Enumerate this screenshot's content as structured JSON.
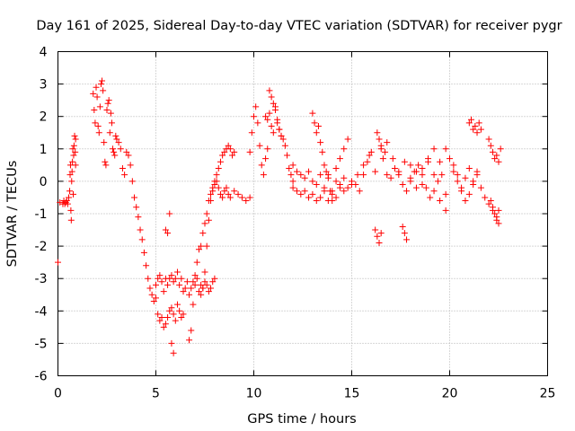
{
  "chart_data": {
    "type": "scatter",
    "title": "Day 161 of 2025, Sidereal Day-to-day VTEC variation (SDTVAR) for receiver pygr",
    "xlabel": "GPS time / hours",
    "ylabel": "SDTVAR / TECUs",
    "xlim": [
      0,
      25
    ],
    "ylim": [
      -6,
      4
    ],
    "xticks": [
      0,
      5,
      10,
      15,
      20,
      25
    ],
    "yticks": [
      -6,
      -5,
      -4,
      -3,
      -2,
      -1,
      0,
      1,
      2,
      3,
      4
    ],
    "grid": true,
    "marker": "+",
    "colors": {
      "series": "#ff0000",
      "grid": "#b0b0b0",
      "axis": "#000000"
    },
    "series": [
      {
        "name": "SDTVAR",
        "x": [
          0.0,
          0.1,
          0.25,
          0.3,
          0.35,
          0.4,
          0.45,
          0.5,
          0.55,
          0.6,
          0.62,
          0.64,
          0.66,
          0.68,
          0.7,
          0.72,
          0.74,
          0.76,
          0.78,
          0.8,
          0.82,
          0.85,
          0.88,
          0.9,
          0.9,
          1.8,
          1.85,
          1.9,
          1.95,
          2.0,
          2.05,
          2.1,
          2.15,
          2.2,
          2.25,
          2.3,
          2.35,
          2.4,
          2.45,
          2.5,
          2.55,
          2.6,
          2.65,
          2.7,
          2.75,
          2.8,
          2.85,
          2.9,
          2.95,
          3.0,
          3.1,
          3.2,
          3.3,
          3.4,
          3.5,
          3.6,
          3.7,
          3.8,
          3.9,
          4.0,
          4.1,
          4.2,
          4.3,
          4.4,
          4.5,
          4.6,
          4.7,
          4.8,
          4.9,
          5.0,
          5.0,
          5.1,
          5.2,
          5.3,
          5.4,
          5.5,
          5.6,
          5.7,
          5.8,
          5.9,
          6.0,
          6.1,
          6.2,
          6.3,
          6.4,
          6.5,
          6.6,
          6.7,
          6.8,
          6.9,
          7.0,
          7.1,
          7.2,
          7.3,
          7.4,
          7.5,
          7.6,
          7.7,
          7.8,
          7.9,
          8.0,
          5.1,
          5.2,
          5.3,
          5.4,
          5.5,
          5.6,
          5.7,
          5.8,
          5.9,
          6.0,
          6.1,
          6.2,
          6.3,
          6.4,
          5.5,
          5.6,
          5.7,
          5.8,
          5.9,
          6.7,
          6.8,
          6.9,
          7.0,
          7.1,
          7.2,
          7.3,
          7.4,
          7.5,
          7.6,
          7.7,
          7.8,
          7.9,
          8.0,
          8.1,
          8.2,
          8.3,
          8.4,
          8.5,
          8.6,
          8.7,
          8.8,
          8.9,
          9.0,
          7.3,
          7.4,
          7.5,
          7.6,
          7.7,
          7.8,
          7.9,
          8.0,
          8.1,
          8.2,
          8.3,
          8.4,
          8.5,
          8.6,
          8.7,
          8.8,
          9.0,
          9.2,
          9.4,
          9.6,
          9.8,
          9.8,
          9.9,
          10.0,
          10.1,
          10.2,
          10.3,
          10.4,
          10.5,
          10.6,
          10.7,
          10.8,
          10.9,
          11.0,
          11.1,
          11.2,
          11.3,
          11.4,
          11.5,
          11.6,
          11.7,
          11.8,
          11.9,
          12.0,
          10.6,
          10.7,
          10.8,
          10.9,
          11.0,
          11.1,
          11.2,
          11.3,
          11.4,
          12.0,
          12.2,
          12.4,
          12.6,
          12.8,
          13.0,
          13.2,
          13.4,
          13.6,
          13.8,
          14.0,
          14.2,
          14.4,
          14.6,
          14.8,
          15.0,
          15.2,
          15.4,
          15.6,
          15.8,
          16.0,
          12.0,
          12.2,
          12.4,
          12.6,
          12.8,
          13.0,
          13.2,
          13.4,
          13.6,
          13.8,
          14.0,
          14.2,
          14.4,
          14.6,
          13.0,
          13.1,
          13.2,
          13.3,
          13.4,
          13.5,
          13.6,
          13.7,
          13.8,
          13.9,
          14.0,
          14.2,
          14.4,
          14.6,
          14.8,
          15.0,
          15.3,
          15.6,
          15.9,
          16.2,
          16.5,
          16.8,
          17.1,
          17.4,
          17.7,
          18.0,
          18.3,
          18.6,
          18.9,
          19.2,
          19.5,
          19.8,
          16.3,
          16.4,
          16.5,
          16.6,
          16.7,
          16.8,
          16.2,
          16.3,
          16.4,
          16.5,
          17.6,
          17.7,
          17.8,
          17.0,
          17.2,
          17.4,
          17.6,
          17.8,
          18.0,
          18.2,
          18.4,
          18.6,
          18.8,
          19.0,
          19.2,
          19.4,
          19.6,
          19.8,
          18.0,
          18.3,
          18.6,
          18.9,
          19.2,
          19.5,
          19.8,
          20.0,
          20.2,
          20.4,
          20.6,
          20.8,
          21.0,
          21.2,
          21.4,
          21.6,
          21.8,
          22.0,
          22.2,
          22.4,
          22.5,
          21.0,
          21.1,
          21.2,
          21.3,
          21.4,
          21.5,
          21.6,
          20.2,
          20.4,
          20.6,
          20.8,
          21.0,
          21.2,
          21.4,
          22.0,
          22.1,
          22.2,
          22.3,
          22.4,
          22.5,
          22.6,
          22.1,
          22.2,
          22.3,
          22.4,
          22.5
        ],
        "y": [
          -2.5,
          -0.65,
          -0.7,
          -0.6,
          -0.7,
          -0.65,
          -0.6,
          -0.7,
          -0.5,
          -0.3,
          0.2,
          0.5,
          -0.9,
          -1.2,
          0.0,
          0.3,
          0.6,
          1.0,
          -0.4,
          0.8,
          1.1,
          1.4,
          0.9,
          0.5,
          1.3,
          2.7,
          2.2,
          1.8,
          2.9,
          2.6,
          1.7,
          1.5,
          2.3,
          3.0,
          3.1,
          2.8,
          1.2,
          0.6,
          0.5,
          2.2,
          2.4,
          2.5,
          1.5,
          2.1,
          1.8,
          1.0,
          0.9,
          0.8,
          1.4,
          1.3,
          1.2,
          1.0,
          0.4,
          0.2,
          0.9,
          0.8,
          0.5,
          0.0,
          -0.5,
          -0.8,
          -1.1,
          -1.5,
          -1.8,
          -2.2,
          -2.6,
          -3.0,
          -3.3,
          -3.5,
          -3.7,
          -3.6,
          -3.2,
          -3.0,
          -2.9,
          -3.1,
          -3.4,
          -3.0,
          -3.2,
          -3.0,
          -2.9,
          -3.1,
          -3.0,
          -2.8,
          -3.2,
          -3.0,
          -3.4,
          -3.3,
          -3.1,
          -3.5,
          -3.3,
          -3.1,
          -3.2,
          -3.0,
          -3.4,
          -3.2,
          -3.3,
          -3.1,
          -3.2,
          -3.4,
          -3.3,
          -3.1,
          -3.0,
          -4.1,
          -4.3,
          -4.2,
          -4.5,
          -4.4,
          -4.2,
          -4.0,
          -3.9,
          -4.1,
          -4.3,
          -3.8,
          -4.0,
          -4.2,
          -4.1,
          -1.5,
          -1.6,
          -1.0,
          -5.0,
          -5.3,
          -4.9,
          -4.6,
          -3.8,
          -2.9,
          -2.5,
          -2.1,
          -2.0,
          -1.6,
          -1.3,
          -1.0,
          -0.6,
          -0.4,
          -0.2,
          0.0,
          0.2,
          0.4,
          0.6,
          0.8,
          0.9,
          1.0,
          1.1,
          1.0,
          0.8,
          0.9,
          -3.5,
          -3.3,
          -2.8,
          -2.0,
          -1.2,
          -0.6,
          -0.3,
          -0.1,
          0.0,
          -0.2,
          -0.4,
          -0.5,
          -0.3,
          -0.2,
          -0.4,
          -0.5,
          -0.3,
          -0.4,
          -0.5,
          -0.6,
          -0.5,
          0.9,
          1.5,
          2.0,
          2.3,
          1.8,
          1.1,
          0.5,
          0.2,
          0.7,
          1.0,
          2.8,
          2.6,
          2.4,
          2.2,
          1.9,
          1.6,
          1.4,
          1.3,
          1.1,
          0.8,
          0.4,
          0.2,
          0.0,
          2.0,
          1.9,
          2.1,
          1.7,
          1.5,
          2.3,
          1.8,
          1.6,
          1.4,
          0.5,
          0.3,
          0.2,
          0.1,
          0.3,
          0.0,
          -0.1,
          0.2,
          -0.2,
          0.1,
          -0.3,
          0.0,
          -0.1,
          0.1,
          -0.2,
          0.0,
          -0.1,
          -0.3,
          0.2,
          0.6,
          0.9,
          -0.2,
          -0.3,
          -0.4,
          -0.3,
          -0.5,
          -0.4,
          -0.6,
          -0.5,
          -0.3,
          -0.6,
          -0.4,
          -0.5,
          -0.2,
          -0.3,
          2.1,
          1.8,
          1.5,
          1.7,
          1.2,
          0.9,
          0.5,
          0.3,
          0.2,
          -0.3,
          -0.6,
          0.4,
          0.7,
          1.0,
          1.3,
          -0.1,
          0.2,
          0.5,
          0.8,
          0.3,
          1.0,
          0.2,
          0.7,
          0.3,
          0.6,
          0.1,
          -0.2,
          0.4,
          0.7,
          1.0,
          0.6,
          1.0,
          1.5,
          1.3,
          1.1,
          0.7,
          0.9,
          1.2,
          -1.5,
          -1.7,
          -1.9,
          -1.6,
          -1.4,
          -1.6,
          -1.8,
          0.1,
          0.4,
          0.2,
          -0.1,
          -0.3,
          0.0,
          0.3,
          0.5,
          0.2,
          -0.2,
          -0.5,
          -0.3,
          0.0,
          0.2,
          -0.4,
          0.5,
          0.3,
          -0.1,
          0.6,
          0.2,
          -0.6,
          -0.9,
          0.7,
          0.5,
          0.2,
          -0.2,
          -0.6,
          -0.4,
          0.0,
          0.3,
          -0.2,
          -0.5,
          -0.7,
          -0.9,
          -1.1,
          -1.3,
          1.8,
          1.9,
          1.6,
          1.7,
          1.5,
          1.8,
          1.6,
          0.3,
          0.0,
          -0.3,
          0.1,
          0.4,
          -0.1,
          0.2,
          1.3,
          1.1,
          0.9,
          0.7,
          0.8,
          0.6,
          1.0,
          -0.6,
          -0.8,
          -1.0,
          -1.2,
          -0.9
        ]
      }
    ]
  }
}
